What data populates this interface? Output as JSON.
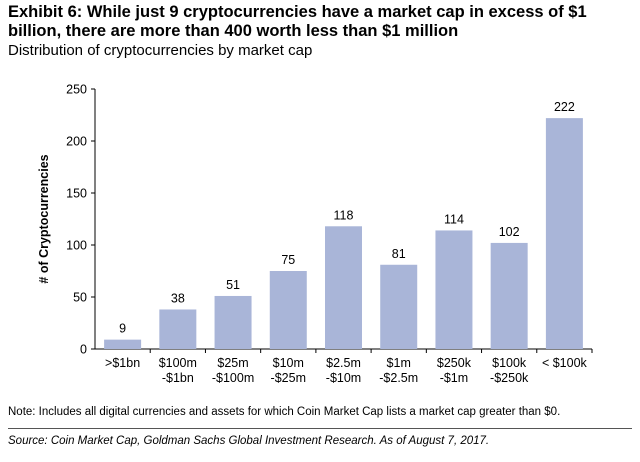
{
  "title": "Exhibit 6: While just 9 cryptocurrencies have a market cap in excess of $1 billion, there are more than 400 worth less than $1 million",
  "subtitle": "Distribution of cryptocurrencies by market cap",
  "note": "Note: Includes all digital currencies and assets for which Coin Market Cap lists a market cap greater than $0.",
  "source": "Source: Coin Market Cap, Goldman Sachs Global Investment Research. As of August 7, 2017.",
  "chart_data": {
    "type": "bar",
    "categories": [
      [
        ">$1bn"
      ],
      [
        "$100m",
        "-$1bn"
      ],
      [
        "$25m",
        "-$100m"
      ],
      [
        "$10m",
        "-$25m"
      ],
      [
        "$2.5m",
        "-$10m"
      ],
      [
        "$1m",
        "-$2.5m"
      ],
      [
        "$250k",
        "-$1m"
      ],
      [
        "$100k",
        "-$250k"
      ],
      [
        "< $100k"
      ]
    ],
    "values": [
      9,
      38,
      51,
      75,
      118,
      81,
      114,
      102,
      222
    ],
    "ylabel": "# of Cryptocurrencies",
    "xlabel": "",
    "ylim": [
      0,
      250
    ],
    "yticks": [
      0,
      50,
      100,
      150,
      200,
      250
    ],
    "grid": false,
    "bar_color": "#a9b5d8",
    "data_labels": true
  }
}
